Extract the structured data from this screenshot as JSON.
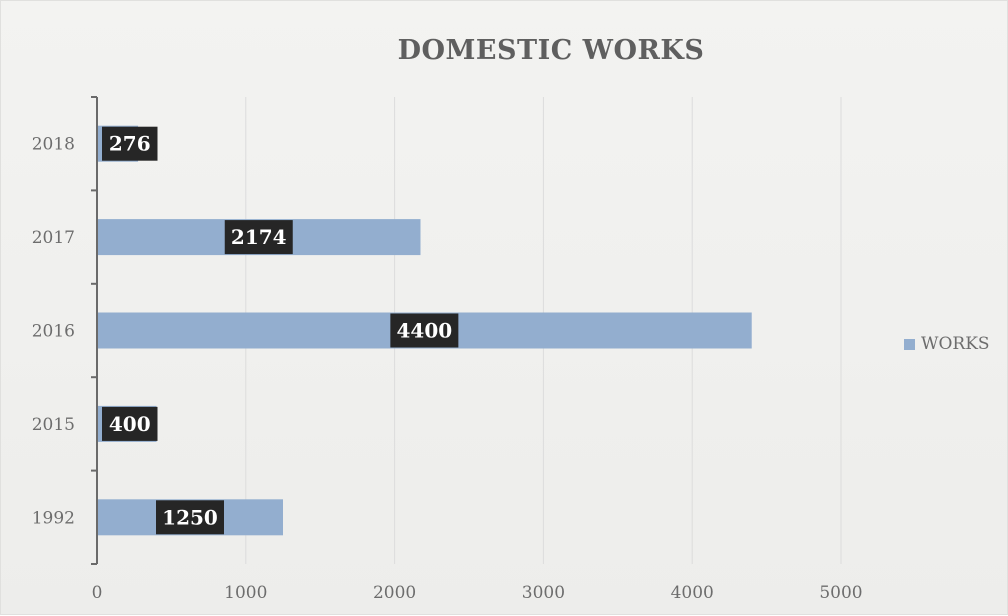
{
  "chart_data": {
    "type": "bar",
    "orientation": "horizontal",
    "title": "DOMESTIC WORKS",
    "categories": [
      "2018",
      "2017",
      "2016",
      "2015",
      "1992"
    ],
    "series": [
      {
        "name": "WORKS",
        "values": [
          276,
          2174,
          4400,
          400,
          1250
        ]
      }
    ],
    "data_labels": [
      "276",
      "2174",
      "4400",
      "400",
      "1250"
    ],
    "x_ticks": [
      "0",
      "1000",
      "2000",
      "3000",
      "4000",
      "5000"
    ],
    "xlim": [
      0,
      5000
    ],
    "grid": true,
    "legend_position": "right",
    "colors": {
      "bar": "#93aecf",
      "label_bg": "#262626",
      "grid": "#dcdcdc",
      "axis": "#6a6a6a"
    }
  }
}
